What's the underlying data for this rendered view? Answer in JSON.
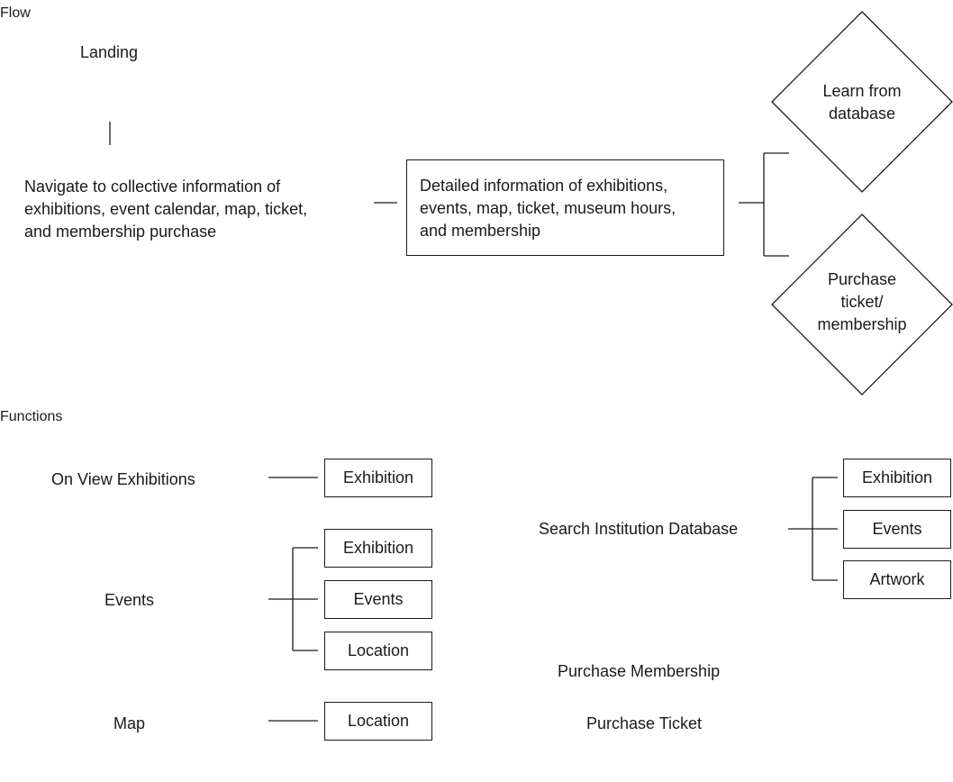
{
  "flow": {
    "section_title": "Flow",
    "landing": "Landing",
    "navigate_lines": [
      "Navigate to collective information of",
      "exhibitions, event calendar, map, ticket,",
      "and membership purchase"
    ],
    "detail_lines": [
      "Detailed information of exhibitions,",
      "events, map, ticket, museum hours,",
      "and membership"
    ],
    "learn_lines": [
      "Learn from",
      "database"
    ],
    "purchase_lines": [
      "Purchase",
      "ticket/",
      "membership"
    ]
  },
  "functions": {
    "section_title": "Functions",
    "on_view": {
      "label": "On View Exhibitions",
      "children": [
        "Exhibition"
      ]
    },
    "events": {
      "label": "Events",
      "children": [
        "Exhibition",
        "Events",
        "Location"
      ]
    },
    "map": {
      "label": "Map",
      "children": [
        "Location"
      ]
    },
    "search": {
      "label": "Search Institution Database",
      "children": [
        "Exhibition",
        "Events",
        "Artwork"
      ]
    },
    "purchase_membership": "Purchase Membership",
    "purchase_ticket": "Purchase Ticket"
  }
}
